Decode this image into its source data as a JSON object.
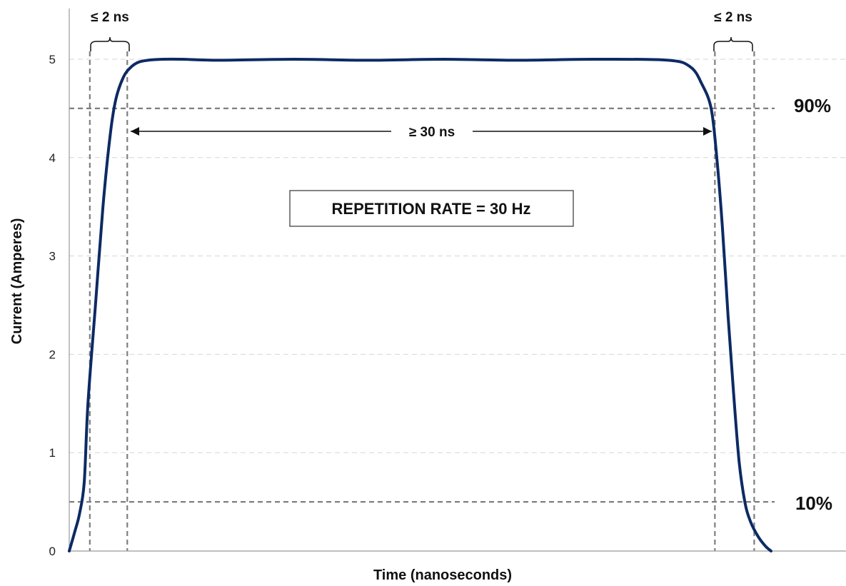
{
  "chart_data": {
    "type": "line",
    "title": "",
    "xlabel": "Time (nanoseconds)",
    "ylabel": "Current (Amperes)",
    "ylim": [
      0,
      5.5
    ],
    "yticks": [
      "0",
      "1",
      "2",
      "3",
      "4",
      "5"
    ],
    "grid": true,
    "series": [
      {
        "color": "#0d2a63",
        "x": [
          0,
          0.3,
          0.55,
          0.8,
          1.0,
          1.4,
          1.8,
          2.2,
          2.5,
          2.9,
          3.3,
          3.7,
          4.2,
          5,
          6,
          8,
          12,
          16,
          20,
          24,
          28,
          32,
          33.2,
          33.8,
          34.3,
          34.6,
          34.9,
          35.2,
          35.5,
          35.8,
          36.1,
          36.4,
          36.8,
          37.2,
          37.5
        ],
        "y": [
          0,
          0.2,
          0.38,
          0.7,
          1.5,
          2.5,
          3.5,
          4.25,
          4.6,
          4.82,
          4.92,
          4.97,
          4.99,
          5.0,
          5.0,
          4.99,
          5.0,
          4.99,
          5.0,
          4.99,
          5.0,
          4.99,
          4.92,
          4.75,
          4.5,
          4.0,
          3.3,
          2.4,
          1.6,
          0.9,
          0.5,
          0.3,
          0.15,
          0.05,
          0.0
        ]
      }
    ],
    "reference_lines": {
      "horizontal": [
        4.5,
        0.5
      ],
      "vertical": [
        1.1,
        3.1,
        34.5,
        36.6
      ]
    },
    "annotations": {
      "rise_time": "≤ 2 ns",
      "fall_time": "≤ 2 ns",
      "pulse_width": "≥ 30 ns",
      "level_high": "90%",
      "level_low": "10%",
      "repetition_box": "REPETITION RATE = 30 Hz"
    }
  }
}
